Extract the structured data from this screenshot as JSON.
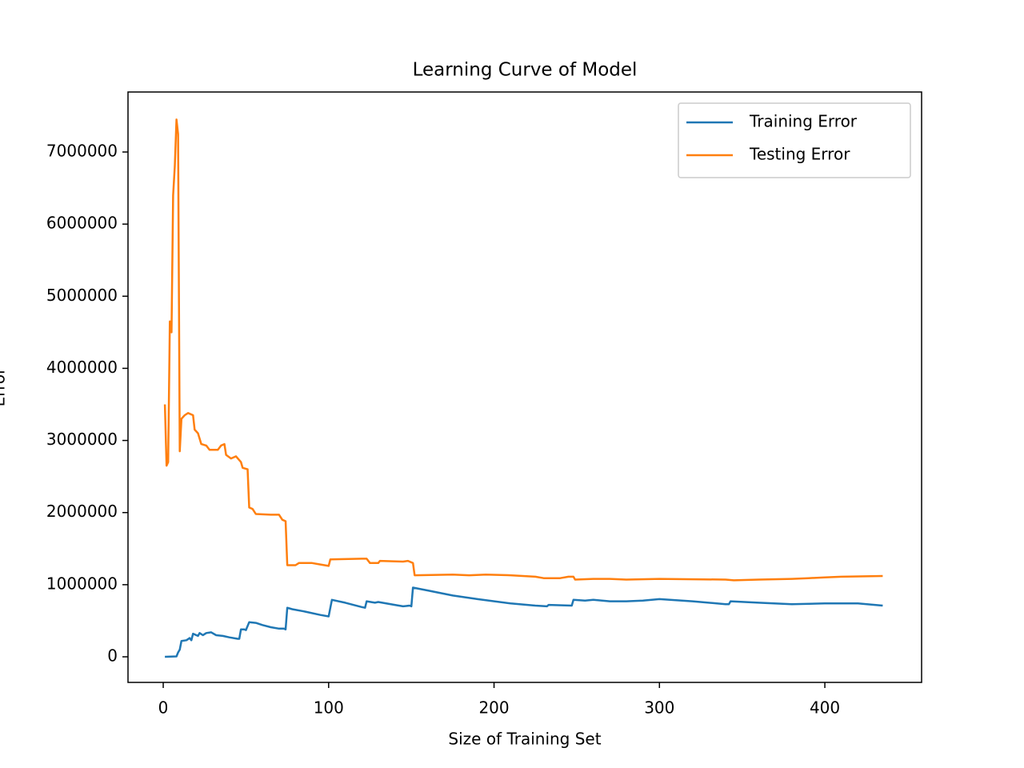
{
  "chart_data": {
    "type": "line",
    "title": "Learning Curve of Model",
    "x_label": "Size of Training Set",
    "y_label": "Error",
    "xlim": [
      -21.3,
      458.5
    ],
    "ylim": [
      -355000,
      7832000
    ],
    "xticks": [
      0,
      100,
      200,
      300,
      400
    ],
    "yticks": [
      0,
      1000000,
      2000000,
      3000000,
      4000000,
      5000000,
      6000000,
      7000000
    ],
    "legend": "upper right",
    "series": [
      {
        "name": "Training Error",
        "color": "#1f77b4",
        "x": [
          1,
          8,
          9,
          10,
          11,
          14,
          16,
          17,
          18,
          21,
          22,
          24,
          26,
          29,
          32,
          36,
          40,
          45,
          46,
          47,
          49,
          50,
          52,
          56,
          60,
          65,
          70,
          73,
          74,
          75,
          78,
          85,
          95,
          100,
          102,
          110,
          120,
          122,
          123,
          128,
          130,
          140,
          145,
          149,
          150,
          151,
          160,
          175,
          190,
          210,
          225,
          232,
          233,
          247,
          248,
          255,
          260,
          270,
          280,
          290,
          300,
          320,
          340,
          342,
          343,
          360,
          380,
          400,
          420,
          435
        ],
        "values": [
          0,
          5000,
          60000,
          100000,
          220000,
          230000,
          260000,
          230000,
          320000,
          290000,
          330000,
          300000,
          330000,
          340000,
          300000,
          290000,
          270000,
          250000,
          250000,
          380000,
          380000,
          370000,
          480000,
          470000,
          440000,
          410000,
          390000,
          390000,
          380000,
          680000,
          660000,
          630000,
          580000,
          560000,
          790000,
          750000,
          690000,
          680000,
          770000,
          750000,
          760000,
          720000,
          700000,
          710000,
          700000,
          960000,
          920000,
          850000,
          800000,
          740000,
          710000,
          700000,
          720000,
          710000,
          790000,
          780000,
          790000,
          770000,
          770000,
          780000,
          800000,
          770000,
          730000,
          730000,
          770000,
          750000,
          730000,
          740000,
          740000,
          710000
        ]
      },
      {
        "name": "Testing Error",
        "color": "#ff7f0e",
        "x": [
          1,
          2,
          3,
          4,
          5,
          6,
          7,
          8,
          9,
          10,
          11,
          13,
          15,
          18,
          19,
          21,
          23,
          26,
          28,
          33,
          35,
          37,
          38,
          41,
          44,
          47,
          48,
          51,
          52,
          54,
          56,
          65,
          70,
          72,
          74,
          75,
          80,
          82,
          90,
          95,
          100,
          101,
          120,
          123,
          125,
          130,
          131,
          145,
          148,
          151,
          152,
          175,
          185,
          195,
          210,
          225,
          230,
          240,
          245,
          248,
          249,
          260,
          270,
          280,
          300,
          340,
          345,
          360,
          380,
          390,
          400,
          410,
          435
        ],
        "values": [
          3500000,
          2650000,
          2700000,
          4650000,
          4500000,
          6400000,
          6800000,
          7450000,
          7250000,
          2850000,
          3300000,
          3350000,
          3380000,
          3350000,
          3150000,
          3100000,
          2950000,
          2930000,
          2870000,
          2870000,
          2930000,
          2950000,
          2800000,
          2750000,
          2780000,
          2700000,
          2620000,
          2600000,
          2070000,
          2050000,
          1980000,
          1970000,
          1970000,
          1900000,
          1880000,
          1270000,
          1270000,
          1300000,
          1300000,
          1280000,
          1260000,
          1350000,
          1360000,
          1360000,
          1300000,
          1300000,
          1330000,
          1320000,
          1330000,
          1300000,
          1130000,
          1140000,
          1130000,
          1140000,
          1130000,
          1110000,
          1090000,
          1090000,
          1110000,
          1110000,
          1070000,
          1080000,
          1080000,
          1070000,
          1080000,
          1070000,
          1060000,
          1070000,
          1080000,
          1090000,
          1100000,
          1110000,
          1120000
        ]
      }
    ]
  }
}
